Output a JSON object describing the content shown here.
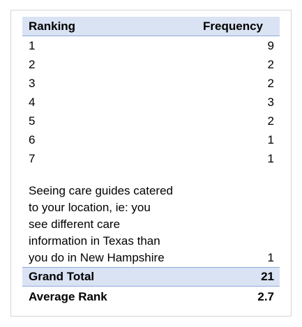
{
  "table": {
    "header": {
      "label": "Ranking",
      "value": "Frequency"
    },
    "rows": [
      {
        "label": "1",
        "value": "9"
      },
      {
        "label": "2",
        "value": "2"
      },
      {
        "label": "3",
        "value": "2"
      },
      {
        "label": "4",
        "value": "3"
      },
      {
        "label": "5",
        "value": "2"
      },
      {
        "label": "6",
        "value": "1"
      },
      {
        "label": "7",
        "value": "1"
      },
      {
        "label": "Seeing care guides catered\nto your location, ie: you\nsee different care\ninformation in Texas than\nyou do in New Hampshire",
        "value": "1"
      }
    ],
    "grand_total": {
      "label": "Grand Total",
      "value": "21"
    },
    "average_rank": {
      "label": "Average Rank",
      "value": "2.7"
    }
  },
  "colors": {
    "header_fill": "#dae3f3",
    "header_border": "#8ea9db"
  }
}
